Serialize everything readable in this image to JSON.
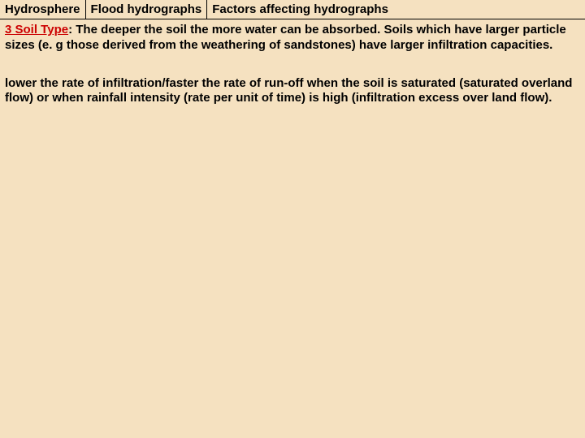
{
  "header": {
    "c1": "Hydrosphere",
    "c2": "Flood hydrographs",
    "c3": "Factors affecting hydrographs"
  },
  "body": {
    "heading": "3 Soil Type",
    "p1_rest": ": The deeper the soil the more water can be absorbed. Soils which have larger particle sizes (e. g those derived from the weathering of sandstones) have larger infiltration capacities.",
    "p2": "lower the rate of infiltration/faster the rate of run-off when the soil is saturated (saturated overland flow) or when rainfall intensity (rate per unit of time) is high (infiltration excess over land flow)."
  }
}
